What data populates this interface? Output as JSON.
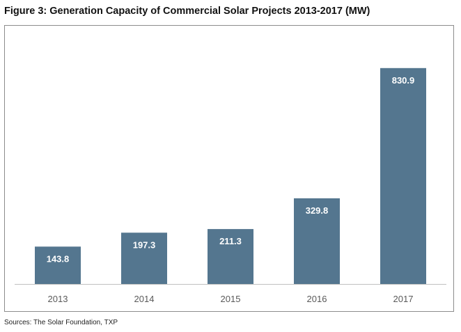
{
  "figure": {
    "title": "Figure 3: Generation Capacity of Commercial Solar Projects 2013-2017 (MW)",
    "source": "Sources: The Solar Foundation, TXP"
  },
  "chart_data": {
    "type": "bar",
    "title": "",
    "xlabel": "",
    "ylabel": "",
    "categories": [
      "2013",
      "2014",
      "2015",
      "2016",
      "2017"
    ],
    "values": [
      143.8,
      197.3,
      211.3,
      329.8,
      830.9
    ],
    "value_labels": [
      "143.8",
      "197.3",
      "211.3",
      "329.8",
      "830.9"
    ],
    "ylim": [
      0,
      900
    ],
    "grid": false,
    "legend": "none",
    "bar_color": "#54768f",
    "label_color": "#ffffff"
  }
}
